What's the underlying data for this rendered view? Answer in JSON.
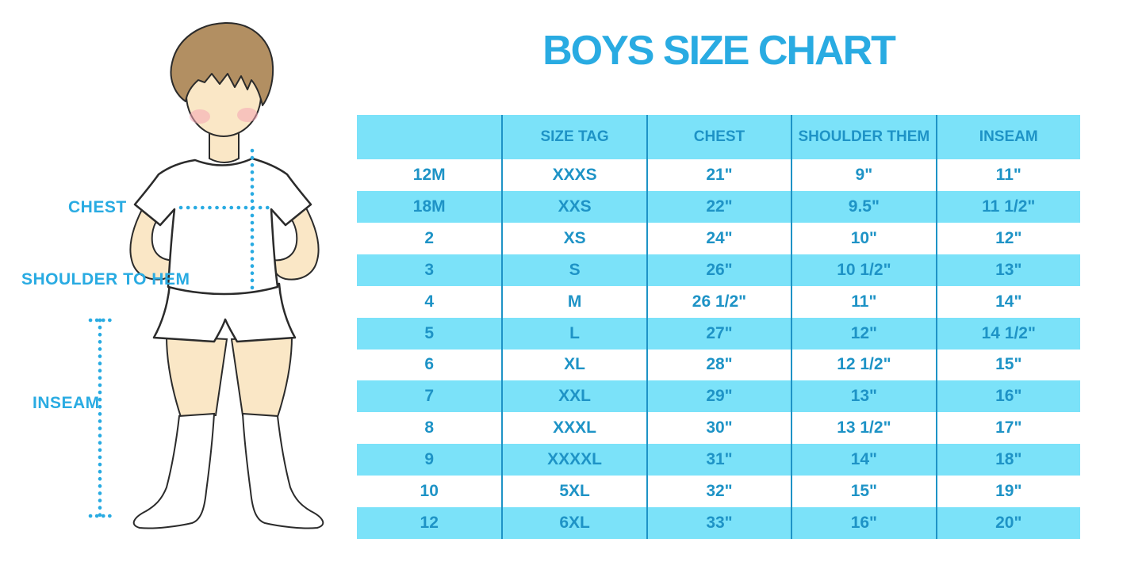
{
  "title": "BOYS SIZE CHART",
  "figure": {
    "chest_label": "CHEST",
    "shoulder_to_hem_label": "SHOULDER TO HEM",
    "inseam_label": "INSEAM"
  },
  "colors": {
    "title_blue": "#29ABE2",
    "table_text_blue": "#1E93C6",
    "stripe_light_blue": "#7BE2F9",
    "grid_line_blue": "#1E93C6",
    "label_cyan": "#29ABE2",
    "skin": "#FAE7C6",
    "hair_brown": "#B28F62",
    "cheek_pink": "#F4A6B4"
  },
  "chart_data": {
    "type": "table",
    "title": "BOYS SIZE CHART",
    "columns": [
      "",
      "SIZE TAG",
      "CHEST",
      "SHOULDER THEM",
      "INSEAM"
    ],
    "rows": [
      [
        "12M",
        "XXXS",
        "21\"",
        "9\"",
        "11\""
      ],
      [
        "18M",
        "XXS",
        "22\"",
        "9.5\"",
        "11 1/2\""
      ],
      [
        "2",
        "XS",
        "24\"",
        "10\"",
        "12\""
      ],
      [
        "3",
        "S",
        "26\"",
        "10 1/2\"",
        "13\""
      ],
      [
        "4",
        "M",
        "26 1/2\"",
        "11\"",
        "14\""
      ],
      [
        "5",
        "L",
        "27\"",
        "12\"",
        "14 1/2\""
      ],
      [
        "6",
        "XL",
        "28\"",
        "12 1/2\"",
        "15\""
      ],
      [
        "7",
        "XXL",
        "29\"",
        "13\"",
        "16\""
      ],
      [
        "8",
        "XXXL",
        "30\"",
        "13 1/2\"",
        "17\""
      ],
      [
        "9",
        "XXXXL",
        "31\"",
        "14\"",
        "18\""
      ],
      [
        "10",
        "5XL",
        "32\"",
        "15\"",
        "19\""
      ],
      [
        "12",
        "6XL",
        "33\"",
        "16\"",
        "20\""
      ]
    ],
    "layout": {
      "striping": "alternating white and light-blue rows, light-blue header",
      "grid": "vertical column dividers only"
    }
  }
}
